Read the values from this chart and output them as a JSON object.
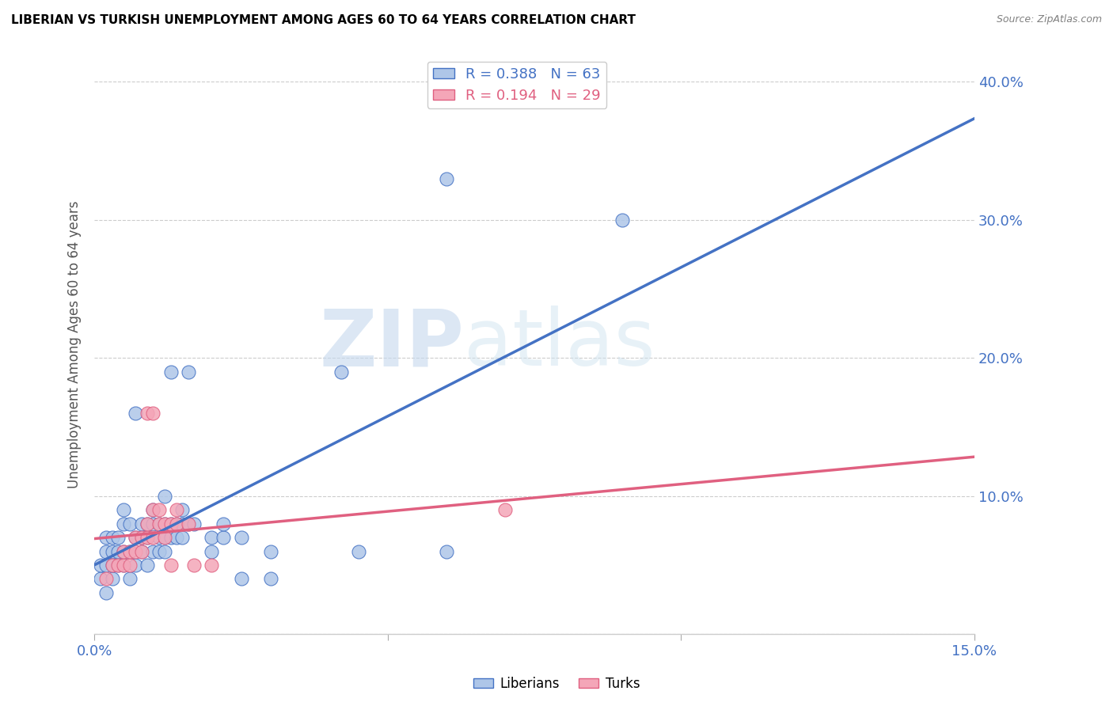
{
  "title": "LIBERIAN VS TURKISH UNEMPLOYMENT AMONG AGES 60 TO 64 YEARS CORRELATION CHART",
  "source": "Source: ZipAtlas.com",
  "ylabel": "Unemployment Among Ages 60 to 64 years",
  "xlim": [
    0.0,
    0.15
  ],
  "ylim": [
    0.0,
    0.42
  ],
  "legend1_R": "0.388",
  "legend1_N": "63",
  "legend2_R": "0.194",
  "legend2_N": "29",
  "color_blue": "#aec6e8",
  "color_pink": "#f4a6b8",
  "line_blue": "#4472c4",
  "line_pink": "#e06080",
  "watermark_zip": "ZIP",
  "watermark_atlas": "atlas",
  "blue_points": [
    [
      0.001,
      0.04
    ],
    [
      0.001,
      0.05
    ],
    [
      0.002,
      0.03
    ],
    [
      0.002,
      0.05
    ],
    [
      0.002,
      0.06
    ],
    [
      0.002,
      0.07
    ],
    [
      0.003,
      0.04
    ],
    [
      0.003,
      0.05
    ],
    [
      0.003,
      0.06
    ],
    [
      0.003,
      0.07
    ],
    [
      0.004,
      0.05
    ],
    [
      0.004,
      0.06
    ],
    [
      0.004,
      0.07
    ],
    [
      0.005,
      0.05
    ],
    [
      0.005,
      0.06
    ],
    [
      0.005,
      0.08
    ],
    [
      0.005,
      0.09
    ],
    [
      0.006,
      0.04
    ],
    [
      0.006,
      0.06
    ],
    [
      0.006,
      0.08
    ],
    [
      0.007,
      0.05
    ],
    [
      0.007,
      0.07
    ],
    [
      0.007,
      0.16
    ],
    [
      0.008,
      0.06
    ],
    [
      0.008,
      0.07
    ],
    [
      0.008,
      0.08
    ],
    [
      0.009,
      0.05
    ],
    [
      0.009,
      0.07
    ],
    [
      0.009,
      0.08
    ],
    [
      0.01,
      0.06
    ],
    [
      0.01,
      0.08
    ],
    [
      0.01,
      0.09
    ],
    [
      0.011,
      0.06
    ],
    [
      0.011,
      0.07
    ],
    [
      0.011,
      0.08
    ],
    [
      0.012,
      0.06
    ],
    [
      0.012,
      0.07
    ],
    [
      0.012,
      0.08
    ],
    [
      0.012,
      0.1
    ],
    [
      0.013,
      0.07
    ],
    [
      0.013,
      0.08
    ],
    [
      0.013,
      0.19
    ],
    [
      0.014,
      0.07
    ],
    [
      0.014,
      0.08
    ],
    [
      0.015,
      0.07
    ],
    [
      0.015,
      0.08
    ],
    [
      0.015,
      0.09
    ],
    [
      0.016,
      0.08
    ],
    [
      0.016,
      0.19
    ],
    [
      0.017,
      0.08
    ],
    [
      0.02,
      0.06
    ],
    [
      0.02,
      0.07
    ],
    [
      0.022,
      0.07
    ],
    [
      0.022,
      0.08
    ],
    [
      0.025,
      0.04
    ],
    [
      0.025,
      0.07
    ],
    [
      0.03,
      0.04
    ],
    [
      0.03,
      0.06
    ],
    [
      0.042,
      0.19
    ],
    [
      0.045,
      0.06
    ],
    [
      0.06,
      0.06
    ],
    [
      0.06,
      0.33
    ],
    [
      0.09,
      0.3
    ]
  ],
  "pink_points": [
    [
      0.002,
      0.04
    ],
    [
      0.003,
      0.05
    ],
    [
      0.004,
      0.05
    ],
    [
      0.005,
      0.05
    ],
    [
      0.005,
      0.06
    ],
    [
      0.006,
      0.05
    ],
    [
      0.006,
      0.06
    ],
    [
      0.007,
      0.06
    ],
    [
      0.007,
      0.07
    ],
    [
      0.008,
      0.06
    ],
    [
      0.008,
      0.07
    ],
    [
      0.009,
      0.07
    ],
    [
      0.009,
      0.08
    ],
    [
      0.009,
      0.16
    ],
    [
      0.01,
      0.07
    ],
    [
      0.01,
      0.09
    ],
    [
      0.01,
      0.16
    ],
    [
      0.011,
      0.08
    ],
    [
      0.011,
      0.09
    ],
    [
      0.012,
      0.07
    ],
    [
      0.012,
      0.08
    ],
    [
      0.013,
      0.05
    ],
    [
      0.013,
      0.08
    ],
    [
      0.014,
      0.08
    ],
    [
      0.014,
      0.09
    ],
    [
      0.016,
      0.08
    ],
    [
      0.017,
      0.05
    ],
    [
      0.02,
      0.05
    ],
    [
      0.07,
      0.09
    ]
  ]
}
